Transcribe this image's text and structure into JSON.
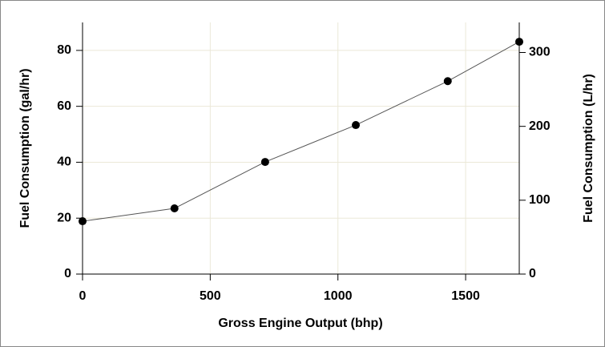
{
  "chart_data": {
    "type": "line",
    "xlabel": "Gross Engine Output (bhp)",
    "ylabel": "Fuel Consumption (gal/hr)",
    "y2label": "Fuel Consumption (L/hr)",
    "x": [
      0,
      360,
      715,
      1070,
      1430,
      1710
    ],
    "series": [
      {
        "color": "#000000",
        "values": [
          18.9,
          23.5,
          40.1,
          53.3,
          69,
          83.1
        ]
      }
    ],
    "xlim": [
      0,
      1710
    ],
    "xticks": [
      0,
      500,
      1000,
      1500
    ],
    "ylim": [
      0,
      90
    ],
    "yticks": [
      0,
      20,
      40,
      60,
      80
    ],
    "y2lim": [
      0,
      340.7
    ],
    "y2ticks": [
      0,
      100,
      200,
      300
    ],
    "grid": true
  }
}
